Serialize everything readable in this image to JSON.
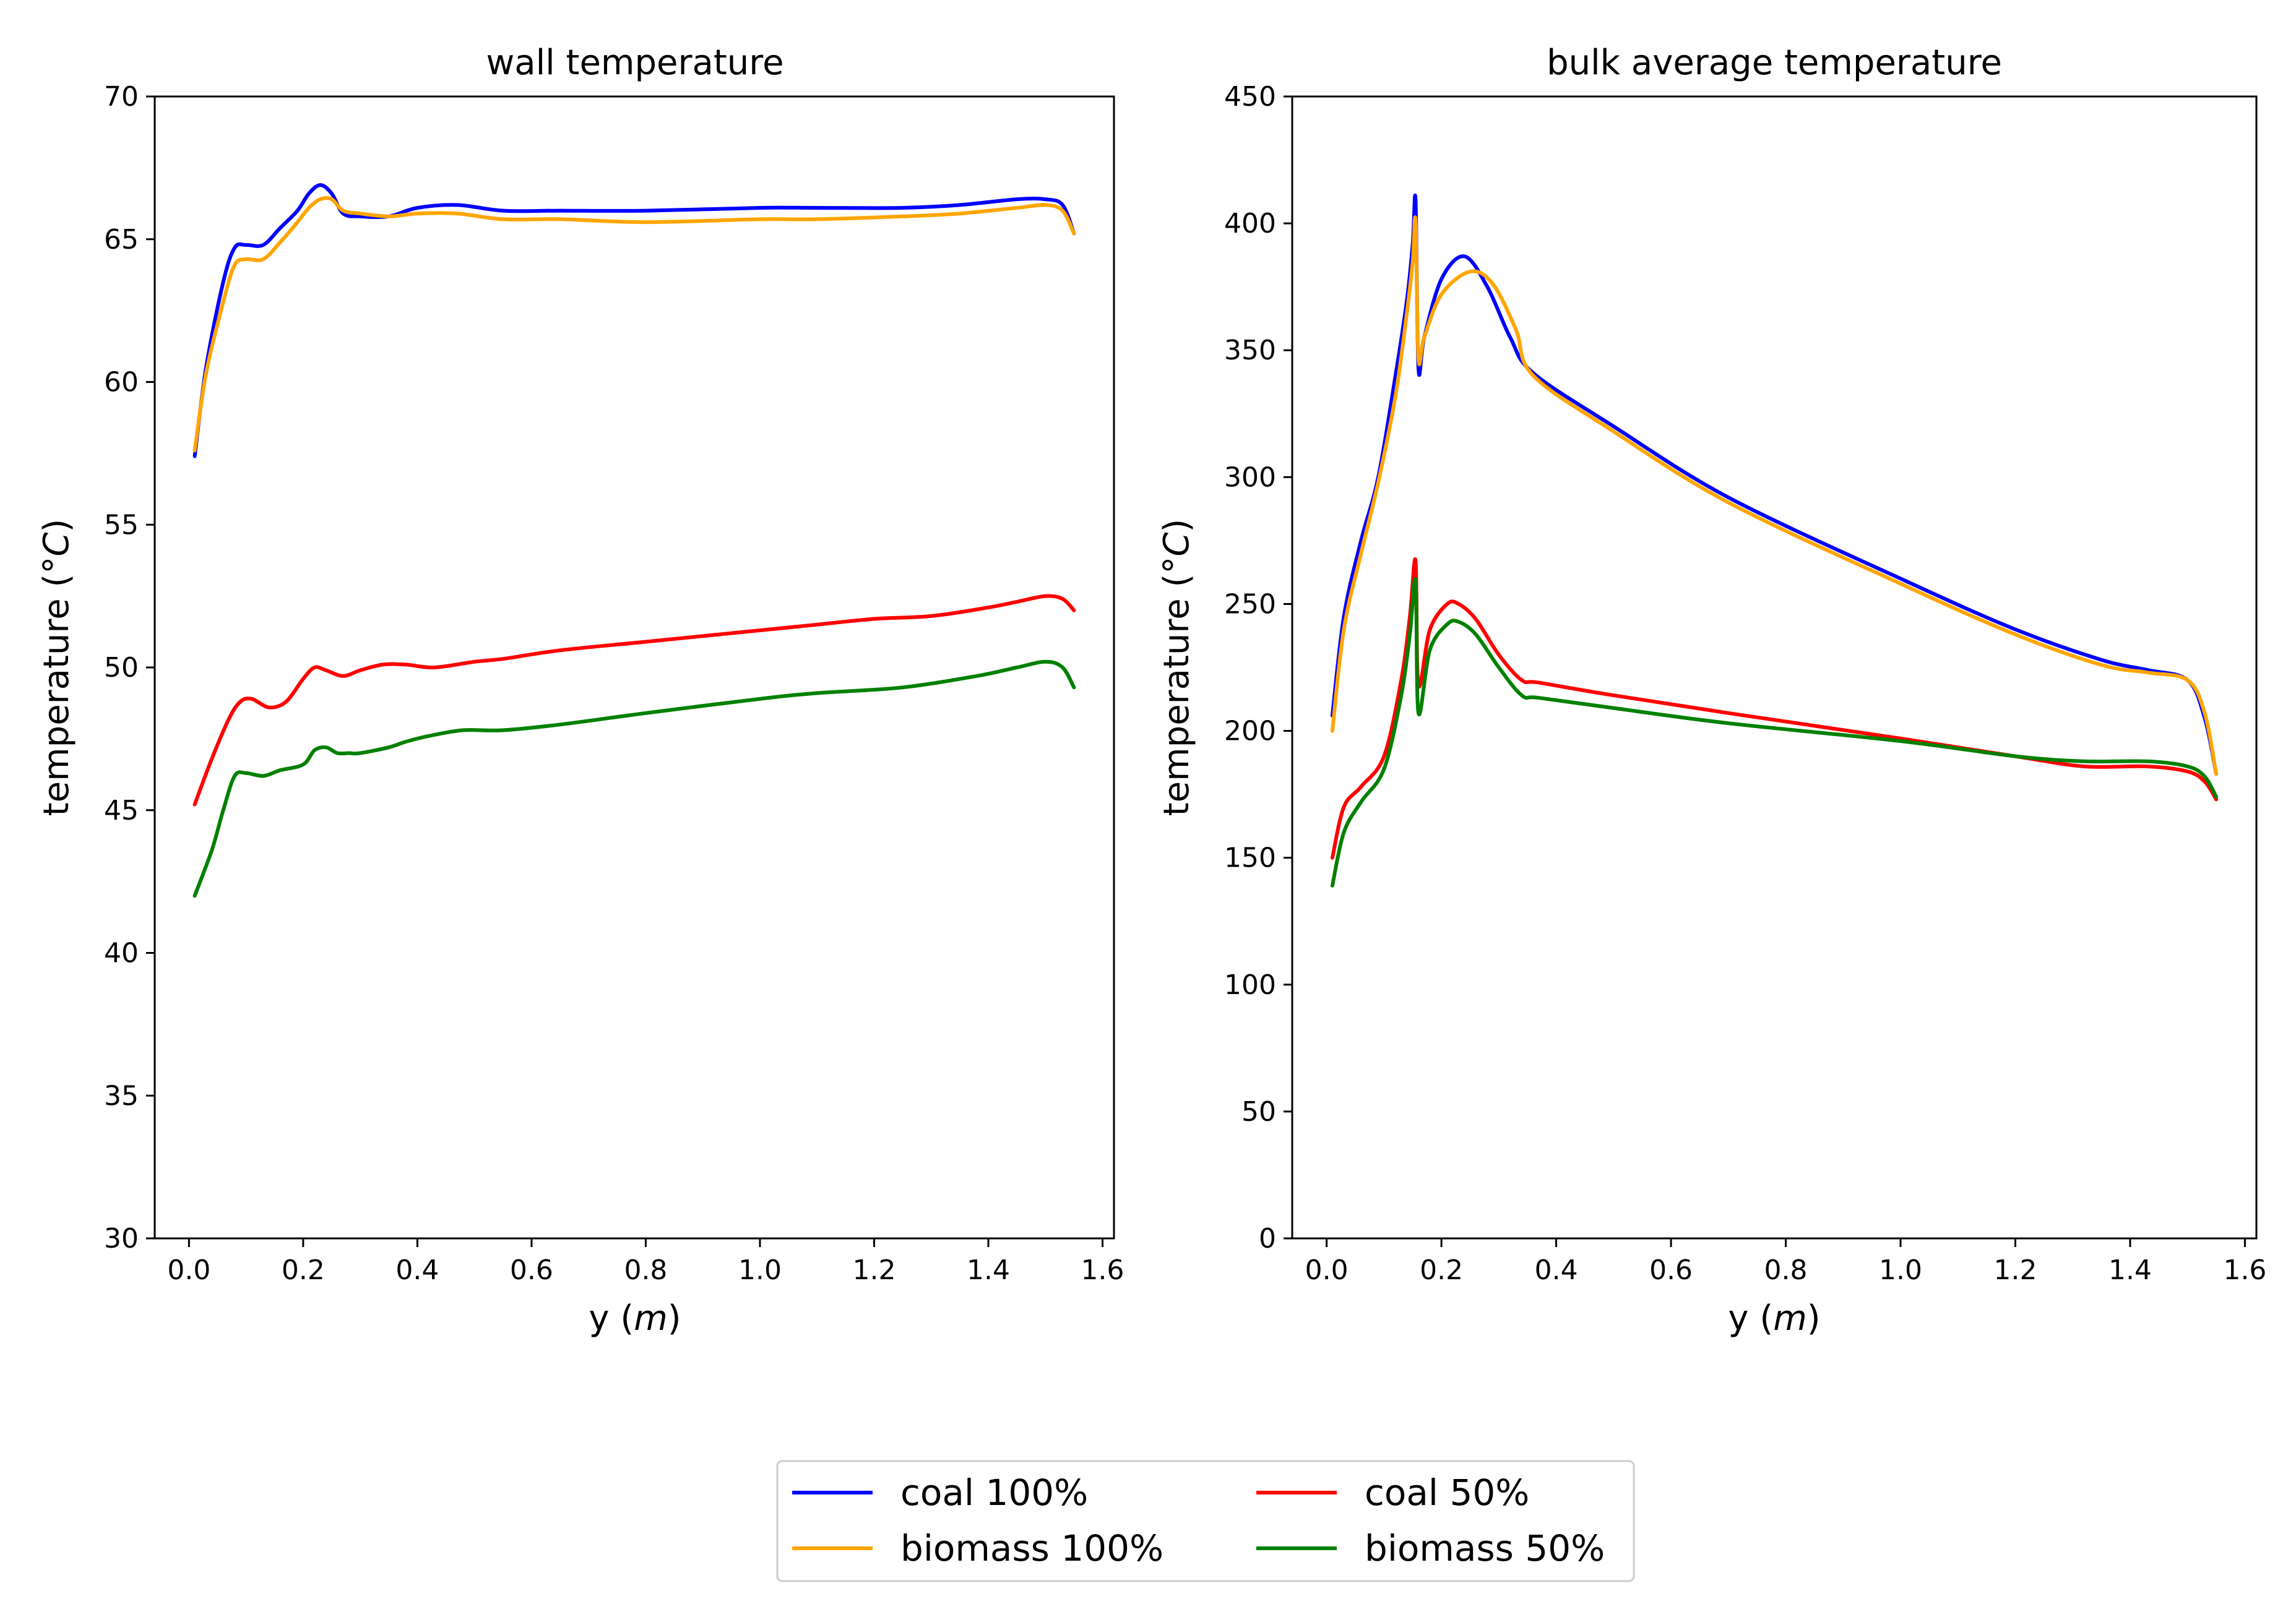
{
  "colors": {
    "coal_100": "#0000ff",
    "biomass_100": "#ffa500",
    "coal_50": "#ff0000",
    "biomass_50": "#008000"
  },
  "legend": {
    "items": [
      {
        "label": "coal 100%",
        "color": "#0000ff"
      },
      {
        "label": "coal 50%",
        "color": "#ff0000"
      },
      {
        "label": "biomass 100%",
        "color": "#ffa500"
      },
      {
        "label": "biomass 50%",
        "color": "#008000"
      }
    ],
    "placement": "bottom-center"
  },
  "chart_data": [
    {
      "type": "line",
      "title": "wall temperature",
      "xlabel": "y (m)",
      "ylabel": "temperature (°C)",
      "xlim": [
        -0.06,
        1.62
      ],
      "ylim": [
        30,
        70
      ],
      "xticks": [
        0.0,
        0.2,
        0.4,
        0.6,
        0.8,
        1.0,
        1.2,
        1.4,
        1.6
      ],
      "xtick_labels": [
        "0.0",
        "0.2",
        "0.4",
        "0.6",
        "0.8",
        "1.0",
        "1.2",
        "1.4",
        "1.6"
      ],
      "yticks": [
        30,
        35,
        40,
        45,
        50,
        55,
        60,
        65,
        70
      ],
      "ytick_labels": [
        "30",
        "35",
        "40",
        "45",
        "50",
        "55",
        "60",
        "65",
        "70"
      ],
      "series": [
        {
          "name": "coal 100%",
          "color": "#0000ff",
          "x": [
            0.01,
            0.03,
            0.06,
            0.08,
            0.1,
            0.13,
            0.16,
            0.19,
            0.21,
            0.23,
            0.25,
            0.27,
            0.3,
            0.35,
            0.4,
            0.47,
            0.55,
            0.65,
            0.8,
            1.0,
            1.1,
            1.25,
            1.35,
            1.45,
            1.5,
            1.53,
            1.55
          ],
          "y": [
            57.4,
            60.5,
            63.5,
            64.7,
            64.8,
            64.8,
            65.4,
            66.0,
            66.6,
            66.9,
            66.6,
            65.9,
            65.8,
            65.8,
            66.1,
            66.2,
            66.0,
            66.0,
            66.0,
            66.1,
            66.1,
            66.1,
            66.2,
            66.4,
            66.4,
            66.2,
            65.2
          ]
        },
        {
          "name": "biomass 100%",
          "color": "#ffa500",
          "x": [
            0.01,
            0.03,
            0.06,
            0.08,
            0.1,
            0.13,
            0.16,
            0.19,
            0.21,
            0.23,
            0.25,
            0.27,
            0.3,
            0.35,
            0.4,
            0.47,
            0.55,
            0.65,
            0.8,
            1.0,
            1.1,
            1.25,
            1.35,
            1.45,
            1.5,
            1.53,
            1.55
          ],
          "y": [
            57.6,
            60.3,
            62.8,
            64.1,
            64.3,
            64.3,
            64.9,
            65.6,
            66.1,
            66.4,
            66.4,
            66.0,
            65.9,
            65.8,
            65.9,
            65.9,
            65.7,
            65.7,
            65.6,
            65.7,
            65.7,
            65.8,
            65.9,
            66.1,
            66.2,
            66.0,
            65.2
          ]
        },
        {
          "name": "coal 50%",
          "color": "#ff0000",
          "x": [
            0.01,
            0.04,
            0.07,
            0.09,
            0.11,
            0.14,
            0.17,
            0.2,
            0.22,
            0.24,
            0.27,
            0.3,
            0.34,
            0.38,
            0.43,
            0.5,
            0.55,
            0.65,
            0.8,
            1.0,
            1.1,
            1.2,
            1.3,
            1.4,
            1.45,
            1.5,
            1.53,
            1.55
          ],
          "y": [
            45.2,
            46.8,
            48.2,
            48.8,
            48.9,
            48.6,
            48.8,
            49.6,
            50.0,
            49.9,
            49.7,
            49.9,
            50.1,
            50.1,
            50.0,
            50.2,
            50.3,
            50.6,
            50.9,
            51.3,
            51.5,
            51.7,
            51.8,
            52.1,
            52.3,
            52.5,
            52.4,
            52.0
          ]
        },
        {
          "name": "biomass 50%",
          "color": "#008000",
          "x": [
            0.01,
            0.04,
            0.06,
            0.08,
            0.1,
            0.13,
            0.16,
            0.2,
            0.22,
            0.24,
            0.26,
            0.28,
            0.3,
            0.35,
            0.38,
            0.42,
            0.48,
            0.55,
            0.65,
            0.8,
            1.0,
            1.1,
            1.25,
            1.38,
            1.45,
            1.5,
            1.53,
            1.55
          ],
          "y": [
            42.0,
            43.6,
            45.0,
            46.2,
            46.3,
            46.2,
            46.4,
            46.6,
            47.1,
            47.2,
            47.0,
            47.0,
            47.0,
            47.2,
            47.4,
            47.6,
            47.8,
            47.8,
            48.0,
            48.4,
            48.9,
            49.1,
            49.3,
            49.7,
            50.0,
            50.2,
            50.0,
            49.3
          ]
        }
      ]
    },
    {
      "type": "line",
      "title": "bulk average temperature",
      "xlabel": "y (m)",
      "ylabel": "temperature (°C)",
      "xlim": [
        -0.06,
        1.62
      ],
      "ylim": [
        0,
        450
      ],
      "xticks": [
        0.0,
        0.2,
        0.4,
        0.6,
        0.8,
        1.0,
        1.2,
        1.4,
        1.6
      ],
      "xtick_labels": [
        "0.0",
        "0.2",
        "0.4",
        "0.6",
        "0.8",
        "1.0",
        "1.2",
        "1.4",
        "1.6"
      ],
      "yticks": [
        0,
        50,
        100,
        150,
        200,
        250,
        300,
        350,
        400,
        450
      ],
      "ytick_labels": [
        "0",
        "50",
        "100",
        "150",
        "200",
        "250",
        "300",
        "350",
        "400",
        "450"
      ],
      "series": [
        {
          "name": "coal 100%",
          "color": "#0000ff",
          "x": [
            0.01,
            0.03,
            0.06,
            0.09,
            0.12,
            0.14,
            0.15,
            0.155,
            0.16,
            0.17,
            0.2,
            0.24,
            0.28,
            0.32,
            0.36,
            0.5,
            0.7,
            1.0,
            1.2,
            1.35,
            1.43,
            1.5,
            1.53,
            1.55
          ],
          "y": [
            206,
            245,
            275,
            300,
            340,
            370,
            392,
            409,
            343,
            355,
            378,
            387,
            375,
            355,
            341,
            320,
            292,
            260,
            240,
            228,
            224,
            220,
            205,
            183
          ]
        },
        {
          "name": "biomass 100%",
          "color": "#ffa500",
          "x": [
            0.01,
            0.03,
            0.06,
            0.09,
            0.12,
            0.14,
            0.15,
            0.155,
            0.16,
            0.17,
            0.2,
            0.25,
            0.29,
            0.33,
            0.36,
            0.5,
            0.7,
            1.0,
            1.2,
            1.35,
            1.43,
            1.5,
            1.53,
            1.55
          ],
          "y": [
            200,
            240,
            270,
            298,
            332,
            365,
            385,
            401,
            347,
            355,
            372,
            381,
            376,
            358,
            340,
            318,
            290,
            258,
            238,
            226,
            223,
            220,
            207,
            183
          ]
        },
        {
          "name": "coal 50%",
          "color": "#ff0000",
          "x": [
            0.01,
            0.03,
            0.06,
            0.1,
            0.13,
            0.145,
            0.155,
            0.16,
            0.18,
            0.21,
            0.23,
            0.26,
            0.3,
            0.34,
            0.37,
            0.5,
            0.7,
            1.0,
            1.2,
            1.32,
            1.43,
            1.5,
            1.53,
            1.55
          ],
          "y": [
            150,
            170,
            178,
            190,
            220,
            245,
            267,
            218,
            240,
            250,
            250,
            244,
            230,
            220,
            219,
            214,
            207,
            197,
            190,
            186,
            186,
            184,
            180,
            173
          ]
        },
        {
          "name": "biomass 50%",
          "color": "#008000",
          "x": [
            0.01,
            0.03,
            0.06,
            0.1,
            0.13,
            0.145,
            0.155,
            0.16,
            0.18,
            0.21,
            0.23,
            0.26,
            0.3,
            0.34,
            0.37,
            0.5,
            0.7,
            1.0,
            1.2,
            1.32,
            1.43,
            1.5,
            1.53,
            1.55
          ],
          "y": [
            139,
            160,
            172,
            185,
            214,
            238,
            259,
            207,
            232,
            242,
            243,
            238,
            225,
            214,
            213,
            209,
            203,
            196,
            190,
            188,
            188,
            186,
            182,
            174
          ]
        }
      ]
    }
  ]
}
